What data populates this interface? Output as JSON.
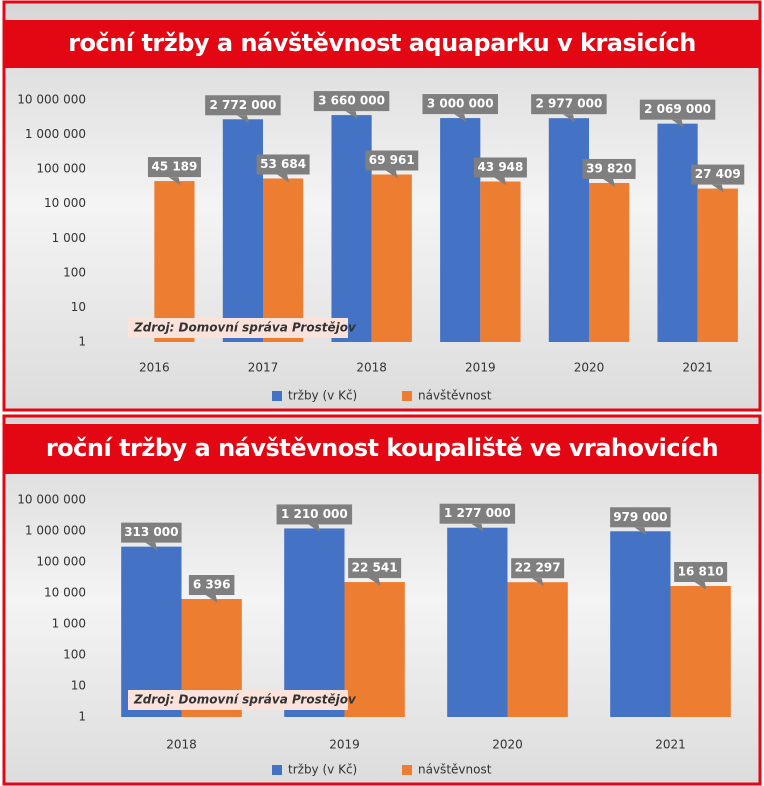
{
  "chart_data": [
    {
      "type": "bar",
      "title": "roční tržby a návštěvnost aquaparku v krasicích",
      "categories": [
        "2016",
        "2017",
        "2018",
        "2019",
        "2020",
        "2021"
      ],
      "series": [
        {
          "name": "tržby (v Kč)",
          "color": "#4472c4",
          "values": [
            null,
            2772000,
            3660000,
            3000000,
            2977000,
            2069000
          ],
          "value_labels": [
            null,
            "2 772 000",
            "3 660 000",
            "3 000 000",
            "2 977 000",
            "2 069 000"
          ]
        },
        {
          "name": "návštěvnost",
          "color": "#ed7d31",
          "values": [
            45189,
            53684,
            69961,
            43948,
            39820,
            27409
          ],
          "value_labels": [
            "45 189",
            "53 684",
            "69 961",
            "43 948",
            "39 820",
            "27 409"
          ]
        }
      ],
      "log_scale": true,
      "ylim": [
        1,
        10000000
      ],
      "yticks": [
        1,
        10,
        100,
        {
          "value": 1000,
          "label": "1 000"
        },
        {
          "value": 10000,
          "label": "10 000"
        },
        {
          "value": 100000,
          "label": "100 000"
        },
        {
          "value": 1000000,
          "label": "1 000 000"
        },
        {
          "value": 10000000,
          "label": "10 000 000"
        }
      ],
      "legend": "bottom",
      "annotation": "Zdroj: Domovní správa Prostějov"
    },
    {
      "type": "bar",
      "title": "roční tržby a návštěvnost koupaliště ve vrahovicích",
      "categories": [
        "2018",
        "2019",
        "2020",
        "2021"
      ],
      "series": [
        {
          "name": "tržby (v Kč)",
          "color": "#4472c4",
          "values": [
            313000,
            1210000,
            1277000,
            979000
          ],
          "value_labels": [
            "313 000",
            "1 210 000",
            "1 277 000",
            "979 000"
          ]
        },
        {
          "name": "návštěvnost",
          "color": "#ed7d31",
          "values": [
            6396,
            22541,
            22297,
            16810
          ],
          "value_labels": [
            "6 396",
            "22 541",
            "22 297",
            "16 810"
          ]
        }
      ],
      "log_scale": true,
      "ylim": [
        1,
        10000000
      ],
      "yticks": [
        1,
        10,
        100,
        {
          "value": 1000,
          "label": "1 000"
        },
        {
          "value": 10000,
          "label": "10 000"
        },
        {
          "value": 100000,
          "label": "100 000"
        },
        {
          "value": 1000000,
          "label": "1 000 000"
        },
        {
          "value": 10000000,
          "label": "10 000 000"
        }
      ],
      "legend": "bottom",
      "annotation": "Zdroj: Domovní správa Prostějov"
    }
  ]
}
